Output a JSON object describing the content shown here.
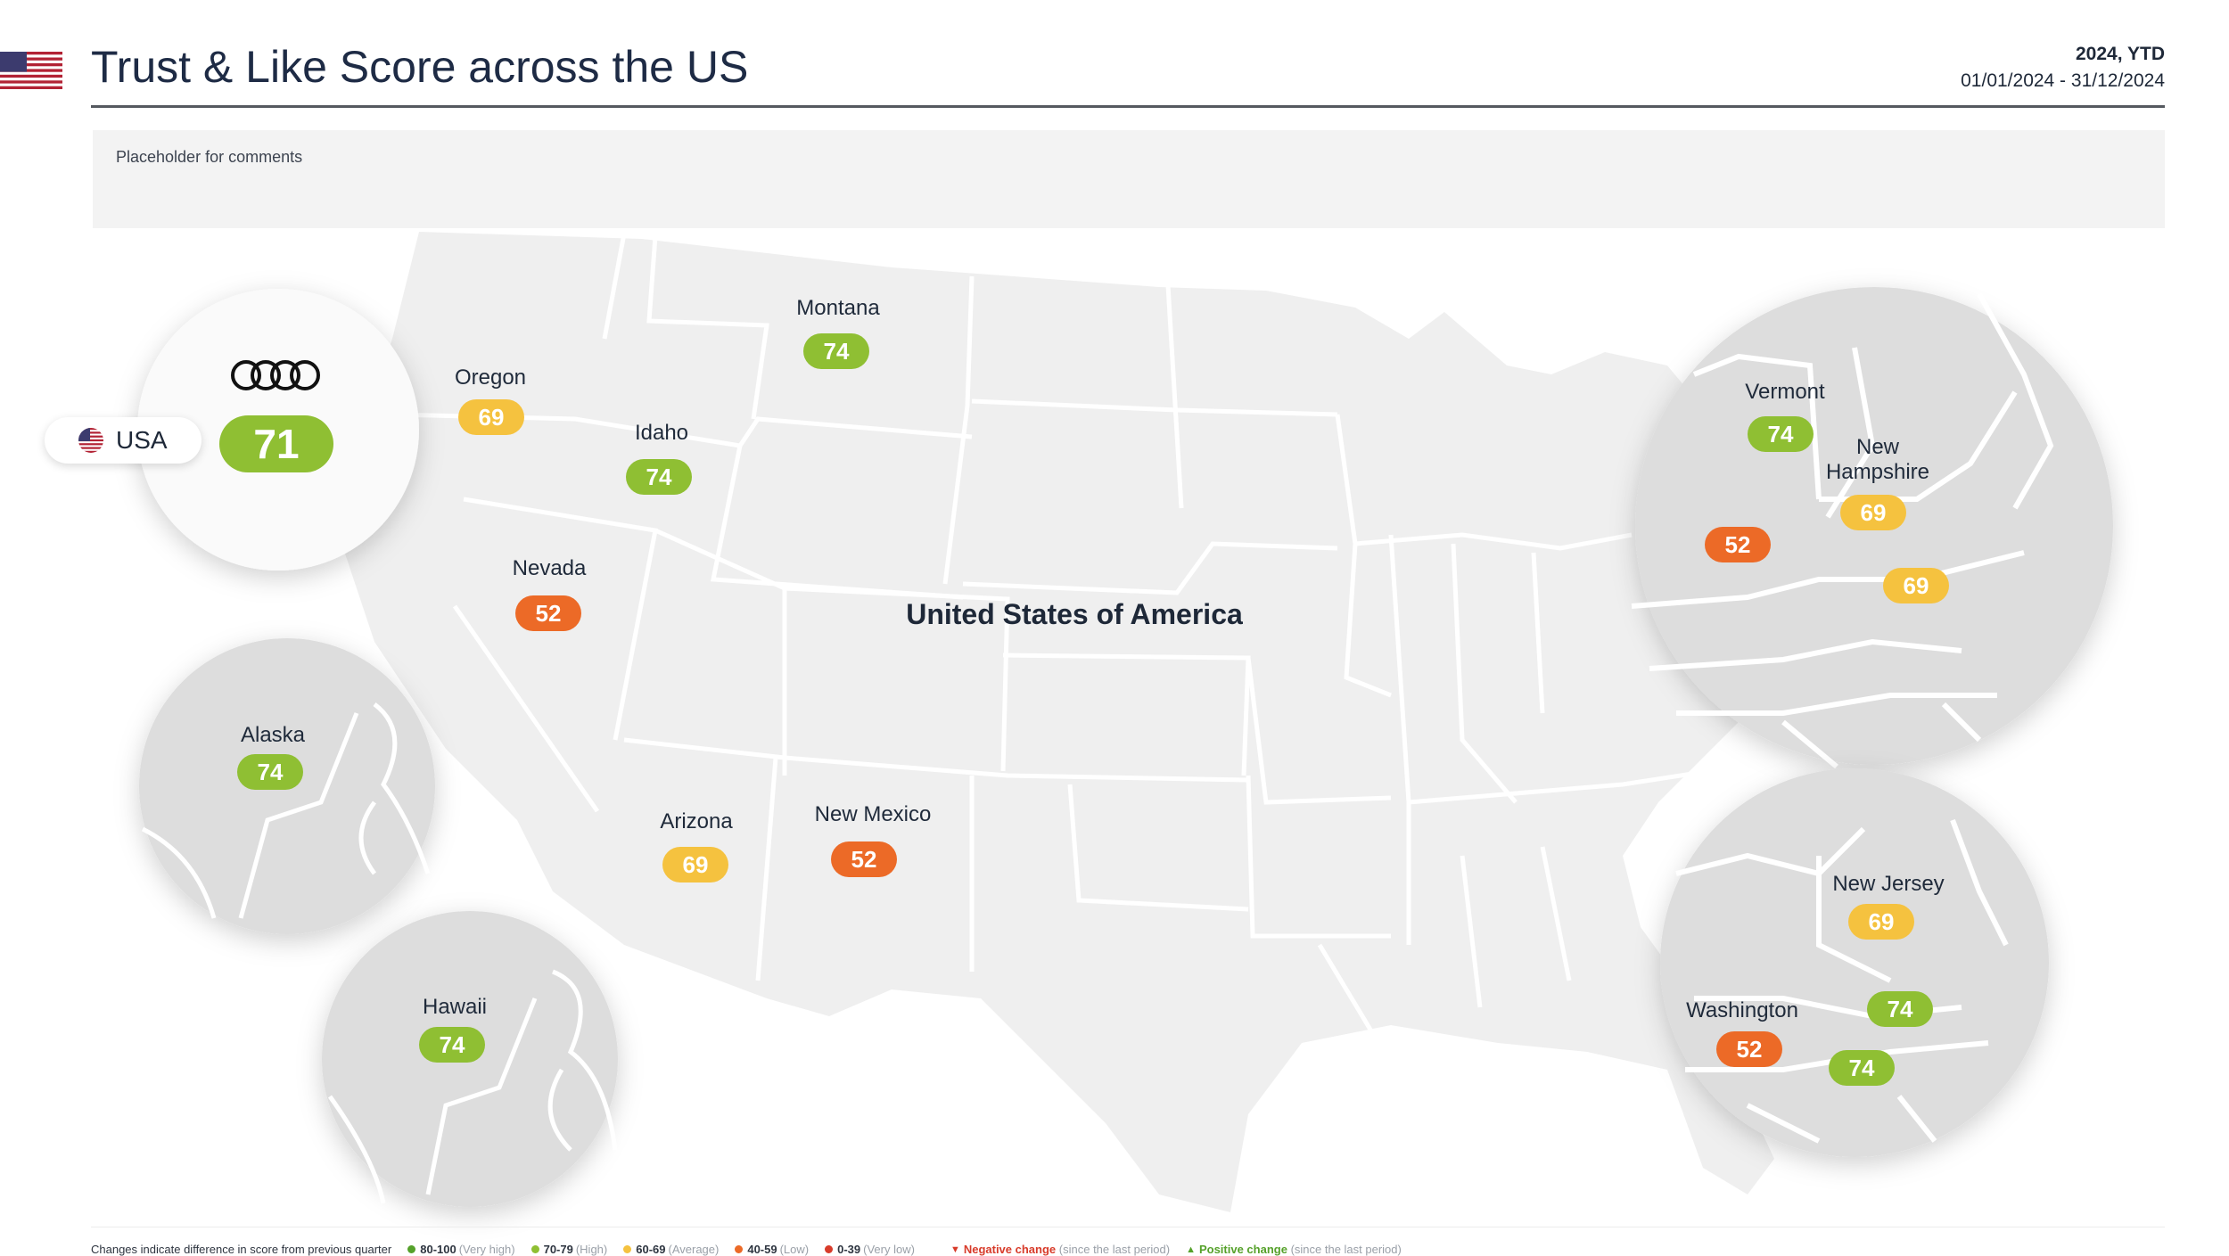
{
  "header": {
    "title": "Trust & Like Score across the US",
    "period_label": "2024, YTD",
    "period_range": "01/01/2024 - 31/12/2024"
  },
  "comments": {
    "placeholder": "Placeholder for comments"
  },
  "country": {
    "label": "United States of America"
  },
  "national": {
    "country": "USA",
    "score": "71",
    "band": "High",
    "color": "#8fbf33"
  },
  "regions": [
    {
      "name": "Montana",
      "score": "74",
      "band": "High"
    },
    {
      "name": "Oregon",
      "score": "69",
      "band": "Average"
    },
    {
      "name": "Idaho",
      "score": "74",
      "band": "High"
    },
    {
      "name": "Nevada",
      "score": "52",
      "band": "Low"
    },
    {
      "name": "Arizona",
      "score": "69",
      "band": "Average"
    },
    {
      "name": "New Mexico",
      "score": "52",
      "band": "Low"
    },
    {
      "name": "Alaska",
      "score": "74",
      "band": "High"
    },
    {
      "name": "Hawaii",
      "score": "74",
      "band": "High"
    },
    {
      "name": "Vermont",
      "score": "74",
      "band": "High"
    },
    {
      "name": "New Hampshire",
      "score": "69",
      "band": "Average"
    },
    {
      "name": "",
      "score": "52",
      "band": "Low"
    },
    {
      "name": "",
      "score": "69",
      "band": "Average"
    },
    {
      "name": "New Jersey",
      "score": "69",
      "band": "Average"
    },
    {
      "name": "Washington",
      "score": "52",
      "band": "Low"
    },
    {
      "name": "",
      "score": "74",
      "band": "High"
    },
    {
      "name": "",
      "score": "74",
      "band": "High"
    }
  ],
  "legend": {
    "note": "Changes indicate difference in score from previous quarter",
    "bands": [
      {
        "range": "80-100",
        "label": "(Very high)",
        "color": "#55a12a"
      },
      {
        "range": "70-79",
        "label": "(High)",
        "color": "#8fbf33"
      },
      {
        "range": "60-69",
        "label": "(Average)",
        "color": "#f5c23f"
      },
      {
        "range": "40-59",
        "label": "(Low)",
        "color": "#ec6a27"
      },
      {
        "range": "0-39",
        "label": "(Very low)",
        "color": "#d83b2a"
      }
    ],
    "negative": {
      "label": "Negative change",
      "note": "(since the last period)"
    },
    "positive": {
      "label": "Positive change",
      "note": "(since the last period)"
    }
  }
}
